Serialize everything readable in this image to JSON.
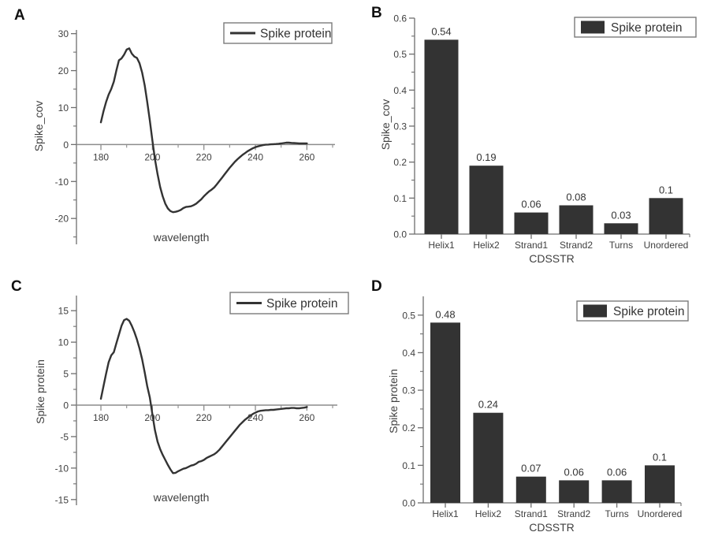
{
  "panels": {
    "A": {
      "letter": "A"
    },
    "B": {
      "letter": "B"
    },
    "C": {
      "letter": "C"
    },
    "D": {
      "letter": "D"
    }
  },
  "colors": {
    "series": "#333333",
    "axis": "#6e6e6e",
    "zero_line": "#8c8c8c",
    "text": "#404040",
    "legend_border": "#7a7a7a",
    "background": "#ffffff"
  },
  "chart_data": [
    {
      "id": "A",
      "type": "line",
      "title": "",
      "xlabel": "wavelength",
      "ylabel": "Spike_cov",
      "legend": [
        {
          "name": "Spike protein",
          "marker": "line"
        }
      ],
      "legend_position": "top-right",
      "grid": false,
      "xlim": [
        170.5,
        270.3
      ],
      "ylim": [
        -27,
        31
      ],
      "x_ticks": [
        180,
        200,
        220,
        240,
        260
      ],
      "x_minor_ticks": [
        190,
        210,
        230,
        250,
        270
      ],
      "y_ticks": [
        -20,
        -10,
        0,
        10,
        20,
        30
      ],
      "y_minor_ticks": [
        -25,
        -15,
        -5,
        5,
        15,
        25
      ],
      "series": [
        {
          "name": "Spike protein",
          "x_start": 180,
          "x_step": 1,
          "y": [
            6.0,
            9.0,
            11.5,
            13.5,
            15.0,
            17.0,
            20.0,
            22.8,
            23.3,
            24.3,
            25.7,
            26.0,
            24.6,
            23.8,
            23.4,
            22.0,
            19.5,
            16.0,
            11.5,
            6.5,
            1.0,
            -4.0,
            -8.0,
            -11.5,
            -14.0,
            -16.0,
            -17.3,
            -18.0,
            -18.3,
            -18.2,
            -18.0,
            -17.7,
            -17.2,
            -16.9,
            -16.8,
            -16.7,
            -16.4,
            -16.0,
            -15.4,
            -14.8,
            -14.0,
            -13.3,
            -12.7,
            -12.2,
            -11.6,
            -10.8,
            -9.9,
            -9.0,
            -8.1,
            -7.2,
            -6.3,
            -5.5,
            -4.7,
            -4.0,
            -3.4,
            -2.8,
            -2.3,
            -1.8,
            -1.4,
            -1.0,
            -0.7,
            -0.5,
            -0.3,
            -0.15,
            -0.05,
            0.0,
            0.05,
            0.1,
            0.15,
            0.2,
            0.3,
            0.4,
            0.5,
            0.5,
            0.45,
            0.4,
            0.35,
            0.3,
            0.3,
            0.3,
            0.3
          ]
        }
      ]
    },
    {
      "id": "B",
      "type": "bar",
      "title": "",
      "xlabel": "CDSSTR",
      "ylabel": "Spike_cov",
      "legend": [
        {
          "name": "Spike protein",
          "marker": "rect"
        }
      ],
      "legend_position": "top-right",
      "grid": false,
      "categories": [
        "Helix1",
        "Helix2",
        "Strand1",
        "Strand2",
        "Turns",
        "Unordered"
      ],
      "values": [
        0.54,
        0.19,
        0.06,
        0.08,
        0.03,
        0.1
      ],
      "bar_labels": [
        "0.54",
        "0.19",
        "0.06",
        "0.08",
        "0.03",
        "0.1"
      ],
      "ylim": [
        0,
        0.6
      ],
      "y_ticks": [
        0.0,
        0.1,
        0.2,
        0.3,
        0.4,
        0.5,
        0.6
      ],
      "y_tick_labels": [
        "0.0",
        "0.1",
        "0.2",
        "0.3",
        "0.4",
        "0.5",
        "0.6"
      ],
      "y_minor_ticks": [
        0.05,
        0.15,
        0.25,
        0.35,
        0.45,
        0.55
      ]
    },
    {
      "id": "C",
      "type": "line",
      "title": "",
      "xlabel": "wavelength",
      "ylabel": "Spike protein",
      "legend": [
        {
          "name": "Spike protein",
          "marker": "line"
        }
      ],
      "legend_position": "top-right",
      "grid": false,
      "xlim": [
        170.5,
        270.3
      ],
      "ylim": [
        -15.9,
        17.4
      ],
      "x_ticks": [
        180,
        200,
        220,
        240,
        260
      ],
      "x_minor_ticks": [
        190,
        210,
        230,
        250,
        270
      ],
      "y_ticks": [
        -15,
        -10,
        -5,
        0,
        5,
        10,
        15
      ],
      "y_minor_ticks": [
        -12.5,
        -7.5,
        -2.5,
        2.5,
        7.5,
        12.5
      ],
      "series": [
        {
          "name": "Spike protein",
          "x_start": 180,
          "x_step": 1,
          "y": [
            1.0,
            3.0,
            5.0,
            6.8,
            7.9,
            8.4,
            9.8,
            11.2,
            12.6,
            13.5,
            13.7,
            13.4,
            12.6,
            11.6,
            10.4,
            9.0,
            7.3,
            5.2,
            3.0,
            1.2,
            -1.5,
            -4.0,
            -5.8,
            -7.0,
            -7.9,
            -8.7,
            -9.5,
            -10.2,
            -10.8,
            -10.75,
            -10.5,
            -10.3,
            -10.1,
            -10.0,
            -9.8,
            -9.6,
            -9.5,
            -9.3,
            -9.0,
            -8.9,
            -8.7,
            -8.4,
            -8.2,
            -8.0,
            -7.8,
            -7.5,
            -7.1,
            -6.6,
            -6.1,
            -5.6,
            -5.1,
            -4.6,
            -4.1,
            -3.6,
            -3.1,
            -2.7,
            -2.3,
            -2.0,
            -1.7,
            -1.4,
            -1.2,
            -1.0,
            -0.9,
            -0.85,
            -0.8,
            -0.8,
            -0.75,
            -0.75,
            -0.7,
            -0.65,
            -0.6,
            -0.55,
            -0.5,
            -0.5,
            -0.45,
            -0.45,
            -0.5,
            -0.5,
            -0.45,
            -0.4,
            -0.3
          ]
        }
      ]
    },
    {
      "id": "D",
      "type": "bar",
      "title": "",
      "xlabel": "CDSSTR",
      "ylabel": "Spike protein",
      "legend": [
        {
          "name": "Spike protein",
          "marker": "rect"
        }
      ],
      "legend_position": "top-right",
      "grid": false,
      "categories": [
        "Helix1",
        "Helix2",
        "Strand1",
        "Strand2",
        "Turns",
        "Unordered"
      ],
      "values": [
        0.48,
        0.24,
        0.07,
        0.06,
        0.06,
        0.1
      ],
      "bar_labels": [
        "0.48",
        "0.24",
        "0.07",
        "0.06",
        "0.06",
        "0.1"
      ],
      "ylim": [
        0,
        0.55
      ],
      "y_ticks": [
        0.0,
        0.1,
        0.2,
        0.3,
        0.4,
        0.5
      ],
      "y_tick_labels": [
        "0.0",
        "0.1",
        "0.2",
        "0.3",
        "0.4",
        "0.5"
      ],
      "y_minor_ticks": [
        0.05,
        0.15,
        0.25,
        0.35,
        0.45
      ]
    }
  ]
}
